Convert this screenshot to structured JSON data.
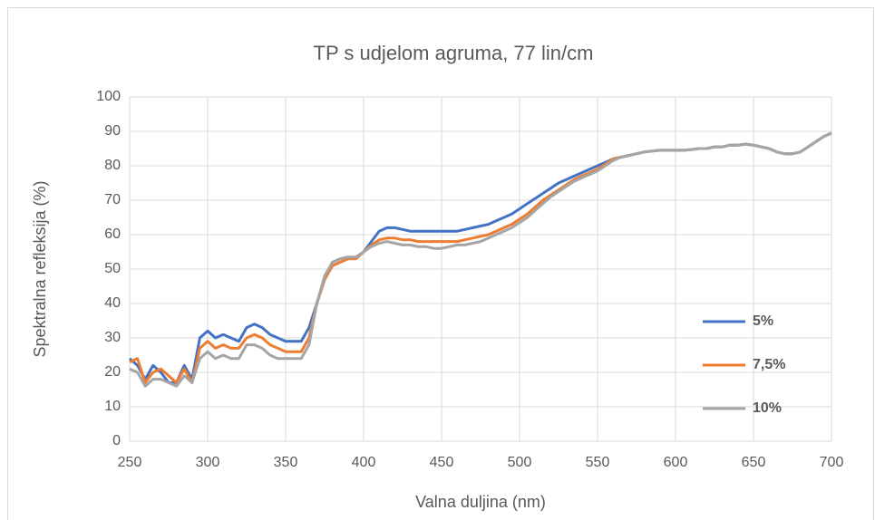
{
  "chart_data": {
    "type": "line",
    "title": "TP s udjelom agruma, 77 lin/cm",
    "x_label": "Valna duljina (nm)",
    "y_label": "Spektralna refleksija (%)",
    "x": [
      250,
      255,
      260,
      265,
      270,
      275,
      280,
      285,
      290,
      295,
      300,
      305,
      310,
      315,
      320,
      325,
      330,
      335,
      340,
      345,
      350,
      355,
      360,
      365,
      370,
      375,
      380,
      385,
      390,
      395,
      400,
      405,
      410,
      415,
      420,
      425,
      430,
      435,
      440,
      445,
      450,
      455,
      460,
      465,
      470,
      475,
      480,
      485,
      490,
      495,
      500,
      505,
      510,
      515,
      520,
      525,
      530,
      535,
      540,
      545,
      550,
      555,
      560,
      565,
      570,
      575,
      580,
      585,
      590,
      595,
      600,
      605,
      610,
      615,
      620,
      625,
      630,
      635,
      640,
      645,
      650,
      655,
      660,
      665,
      670,
      675,
      680,
      685,
      690,
      695,
      700
    ],
    "series": [
      {
        "name": "5%",
        "color": "#4472c4",
        "values": [
          24,
          22,
          18,
          22,
          20,
          17,
          17,
          22,
          18,
          30,
          32,
          30,
          31,
          30,
          29,
          33,
          34,
          33,
          31,
          30,
          29,
          29,
          29,
          33,
          40,
          47,
          51,
          52,
          53,
          53,
          55,
          58,
          61,
          62,
          62,
          61.5,
          61,
          61,
          61,
          61,
          61,
          61,
          61,
          61.5,
          62,
          62.5,
          63,
          64,
          65,
          66,
          67.5,
          69,
          70.5,
          72,
          73.5,
          75,
          76,
          77,
          78,
          79,
          80,
          81,
          82,
          82.5,
          83,
          83.5,
          84,
          84.3,
          84.5,
          84.5,
          84.5,
          84.5,
          84.7,
          85,
          85,
          85.5,
          85.5,
          86,
          86,
          86.3,
          86,
          85.5,
          85,
          84,
          83.5,
          83.5,
          84,
          85.5,
          87,
          88.5,
          89.5
        ]
      },
      {
        "name": "7,5%",
        "color": "#ed7d31",
        "values": [
          23,
          24,
          17,
          20,
          21,
          19,
          17,
          21,
          17,
          27,
          29,
          27,
          28,
          27,
          27,
          30,
          31,
          30,
          28,
          27,
          26,
          26,
          26,
          30,
          40,
          47,
          51,
          52,
          53,
          53,
          55,
          57,
          58.5,
          59,
          59,
          58.5,
          58.5,
          58,
          58,
          58,
          58,
          58,
          58,
          58.5,
          59,
          59.5,
          60,
          61,
          62,
          63,
          64.5,
          66,
          68,
          70,
          71.5,
          73,
          74.5,
          76,
          77,
          78,
          79,
          80.5,
          82,
          82.5,
          83,
          83.5,
          84,
          84.3,
          84.5,
          84.5,
          84.5,
          84.5,
          84.7,
          85,
          85,
          85.5,
          85.5,
          86,
          86,
          86.3,
          86,
          85.5,
          85,
          84,
          83.5,
          83.5,
          84,
          85.5,
          87,
          88.5,
          89.5
        ]
      },
      {
        "name": "10%",
        "color": "#a5a5a5",
        "values": [
          21,
          20,
          16,
          18,
          18,
          17,
          16,
          19,
          17,
          24,
          26,
          24,
          25,
          24,
          24,
          28,
          28,
          27,
          25,
          24,
          24,
          24,
          24,
          28,
          40,
          48,
          52,
          53,
          53.5,
          53.5,
          55,
          56.5,
          57.5,
          58,
          57.5,
          57,
          57,
          56.5,
          56.5,
          56,
          56,
          56.5,
          57,
          57,
          57.5,
          58,
          59,
          60,
          61,
          62,
          63.5,
          65,
          67,
          69,
          71,
          72.5,
          74,
          75.5,
          76.5,
          77.5,
          78.5,
          80,
          81.5,
          82.5,
          83,
          83.5,
          84,
          84.3,
          84.5,
          84.5,
          84.5,
          84.5,
          84.7,
          85,
          85,
          85.5,
          85.5,
          86,
          86,
          86.3,
          86,
          85.5,
          85,
          84,
          83.5,
          83.5,
          84,
          85.5,
          87,
          88.5,
          89.5
        ]
      }
    ],
    "xlim": [
      250,
      700
    ],
    "xticks": [
      250,
      300,
      350,
      400,
      450,
      500,
      550,
      600,
      650,
      700
    ],
    "ylim": [
      0,
      100
    ],
    "yticks": [
      0,
      10,
      20,
      30,
      40,
      50,
      60,
      70,
      80,
      90,
      100
    ],
    "grid": true,
    "legend": "right"
  }
}
